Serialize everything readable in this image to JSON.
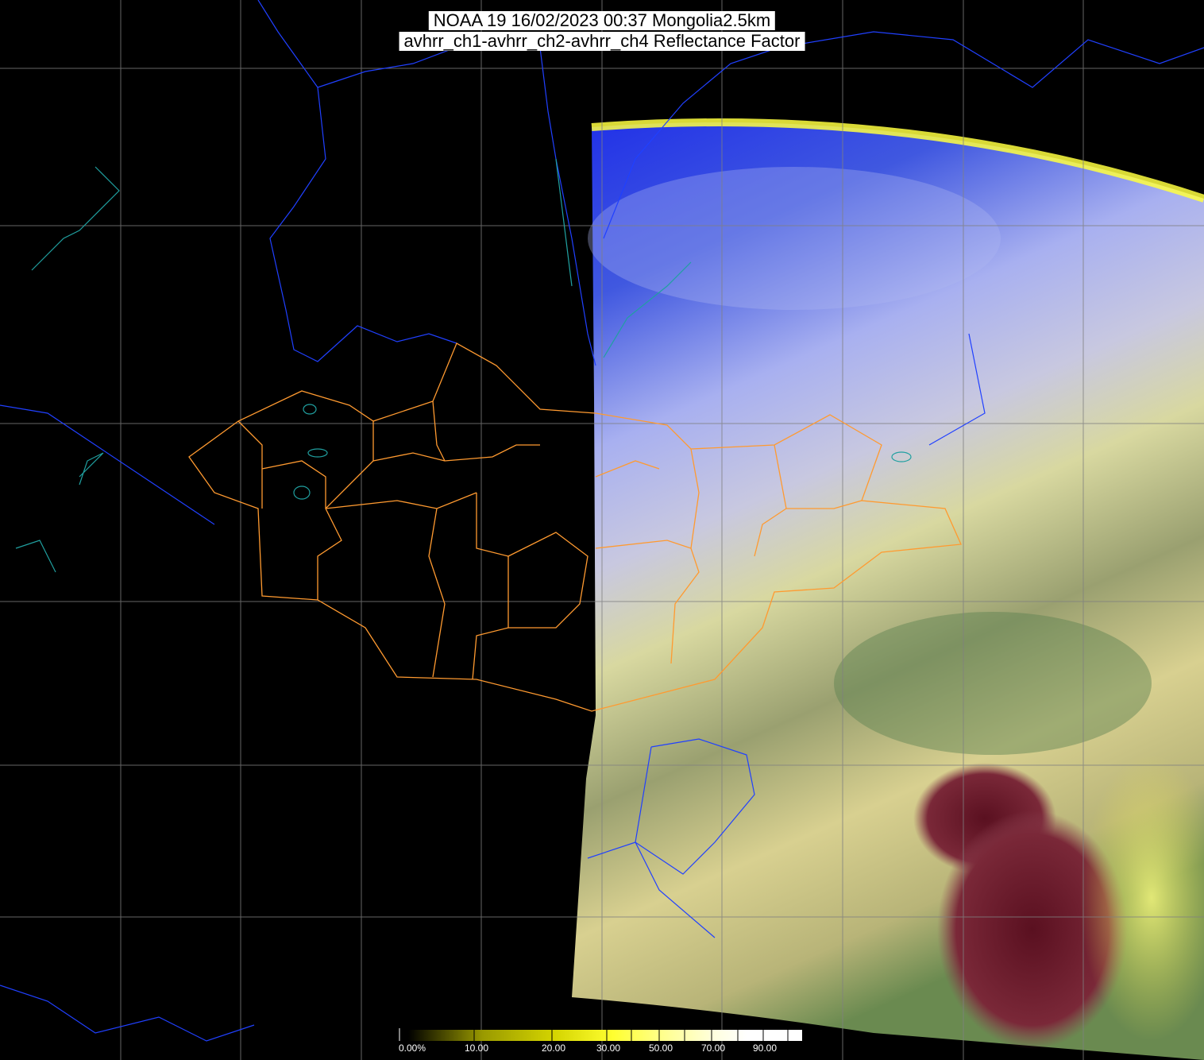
{
  "title": {
    "line1": "NOAA 19 16/02/2023 00:37 Mongolia2.5km",
    "line2": "avhrr_ch1-avhrr_ch2-avhrr_ch4 Reflectance Factor"
  },
  "colorbar": {
    "labels": [
      "0.00%",
      "10.00",
      "20.00",
      "30.00",
      "50.00",
      "70.00",
      "90.00"
    ],
    "colors": [
      "#000000",
      "#9a9a00",
      "#d8d800",
      "#ffff30",
      "#ffff90",
      "#ffffe0",
      "#ffffff"
    ]
  },
  "colors": {
    "grid": "#808080",
    "province_borders": "#ff9a30",
    "coastlines_rivers": "#2040ff",
    "lakes": "#20a0a0"
  }
}
